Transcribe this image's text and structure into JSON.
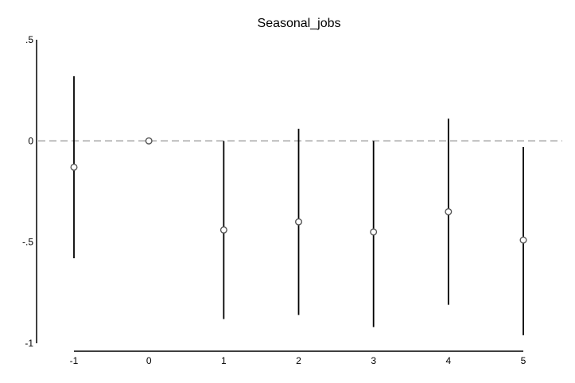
{
  "chart_data": {
    "type": "scatter",
    "title": "Seasonal_jobs",
    "xlabel": "",
    "ylabel": "",
    "x_ticks": [
      "-1",
      "0",
      "1",
      "2",
      "3",
      "4",
      "5"
    ],
    "y_ticks": [
      ".5",
      "0",
      "-.5",
      "-1"
    ],
    "ylim": [
      -1,
      0.5
    ],
    "reference_line": {
      "y": 0,
      "style": "dashed",
      "color": "#9e9e9e"
    },
    "grid": false,
    "series": [
      {
        "points": [
          {
            "x": -1,
            "y": -0.13,
            "ci_low": -0.58,
            "ci_high": 0.32
          },
          {
            "x": 0,
            "y": 0.0,
            "ci_low": 0.0,
            "ci_high": 0.0
          },
          {
            "x": 1,
            "y": -0.44,
            "ci_low": -0.88,
            "ci_high": 0.0
          },
          {
            "x": 2,
            "y": -0.4,
            "ci_low": -0.86,
            "ci_high": 0.06
          },
          {
            "x": 3,
            "y": -0.45,
            "ci_low": -0.92,
            "ci_high": 0.0
          },
          {
            "x": 4,
            "y": -0.35,
            "ci_low": -0.81,
            "ci_high": 0.11
          },
          {
            "x": 5,
            "y": -0.49,
            "ci_low": -0.96,
            "ci_high": -0.03
          }
        ]
      }
    ],
    "colors": {
      "marker": "#555555",
      "ci_line": "#000000",
      "axis": "#000000"
    }
  }
}
